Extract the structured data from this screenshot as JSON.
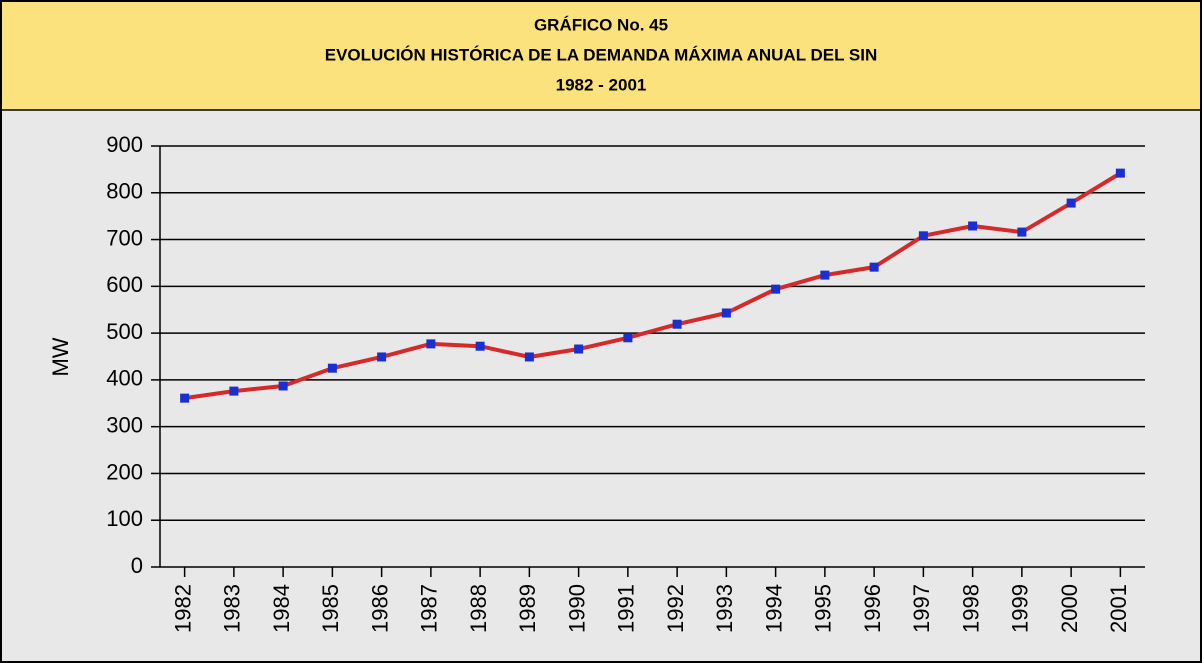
{
  "chart_data": {
    "type": "line",
    "title": [
      "GRÁFICO No. 45",
      "EVOLUCIÓN HISTÓRICA DE LA DEMANDA MÁXIMA ANUAL DEL SIN",
      "1982 - 2001"
    ],
    "y_label": "MW",
    "categories": [
      "1982",
      "1983",
      "1984",
      "1985",
      "1986",
      "1987",
      "1988",
      "1989",
      "1990",
      "1991",
      "1992",
      "1993",
      "1994",
      "1995",
      "1996",
      "1997",
      "1998",
      "1999",
      "2000",
      "2001"
    ],
    "series": [
      {
        "color": "#d42a2a",
        "marker_color": "#1a2fd0",
        "values": [
          361,
          376,
          387,
          425,
          449,
          477,
          472,
          449,
          466,
          490,
          519,
          543,
          594,
          624,
          641,
          708,
          729,
          716,
          778,
          842
        ]
      }
    ],
    "ylim": [
      0,
      900
    ],
    "yticks": [
      0,
      100,
      200,
      300,
      400,
      500,
      600,
      700,
      800,
      900
    ],
    "grid": true
  }
}
